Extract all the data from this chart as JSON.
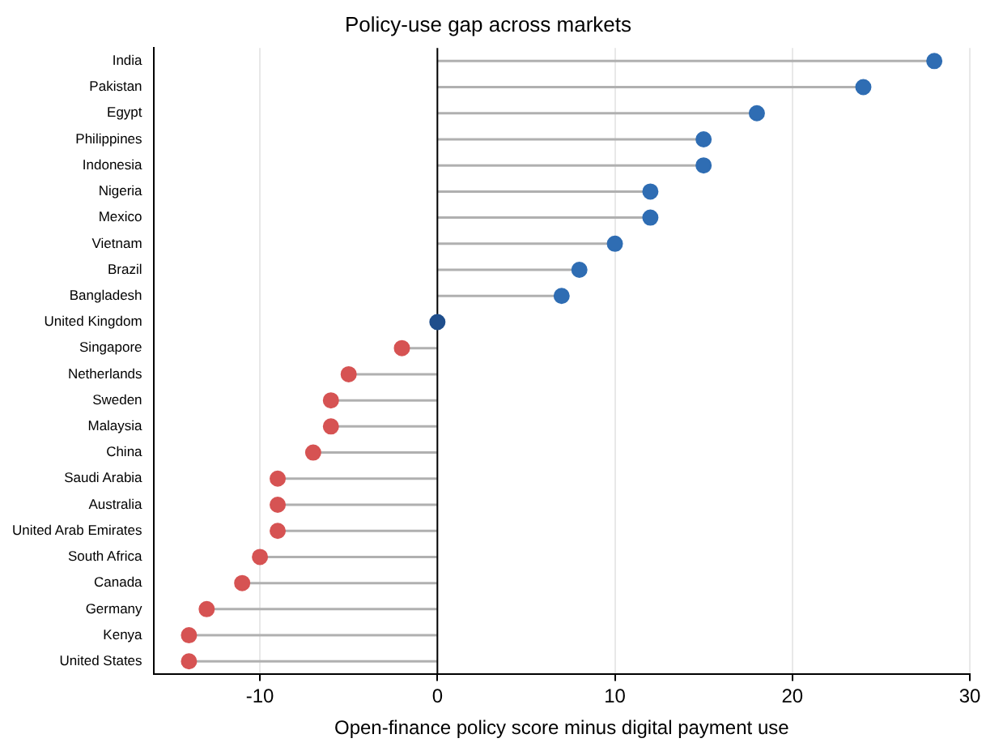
{
  "chart_data": {
    "type": "lollipop",
    "orientation": "horizontal",
    "title": "Policy-use gap across markets",
    "xlabel": "Open-finance policy score minus digital payment use",
    "categories": [
      "India",
      "Pakistan",
      "Egypt",
      "Philippines",
      "Indonesia",
      "Nigeria",
      "Mexico",
      "Vietnam",
      "Brazil",
      "Bangladesh",
      "United Kingdom",
      "Singapore",
      "Netherlands",
      "Sweden",
      "Malaysia",
      "China",
      "Saudi Arabia",
      "Australia",
      "United Arab Emirates",
      "South Africa",
      "Canada",
      "Germany",
      "Kenya",
      "United States"
    ],
    "values": [
      28,
      24,
      18,
      15,
      15,
      12,
      12,
      10,
      8,
      7,
      0,
      -2,
      -5,
      -6,
      -6,
      -7,
      -9,
      -9,
      -9,
      -10,
      -11,
      -13,
      -14,
      -14
    ],
    "colors": [
      "#2f6db3",
      "#2f6db3",
      "#2f6db3",
      "#2f6db3",
      "#2f6db3",
      "#2f6db3",
      "#2f6db3",
      "#2f6db3",
      "#2f6db3",
      "#2f6db3",
      "#1f4e8c",
      "#d65353",
      "#d65353",
      "#d65353",
      "#d65353",
      "#d65353",
      "#d65353",
      "#d65353",
      "#d65353",
      "#d65353",
      "#d65353",
      "#d65353",
      "#d65353",
      "#d65353"
    ],
    "xlim": [
      -16,
      30
    ],
    "xticks": [
      -10,
      0,
      10,
      20,
      30
    ],
    "grid": "x",
    "marker": "circle",
    "ref_lines": [
      {
        "axis": "x",
        "value": 0,
        "color": "#000000"
      }
    ]
  }
}
